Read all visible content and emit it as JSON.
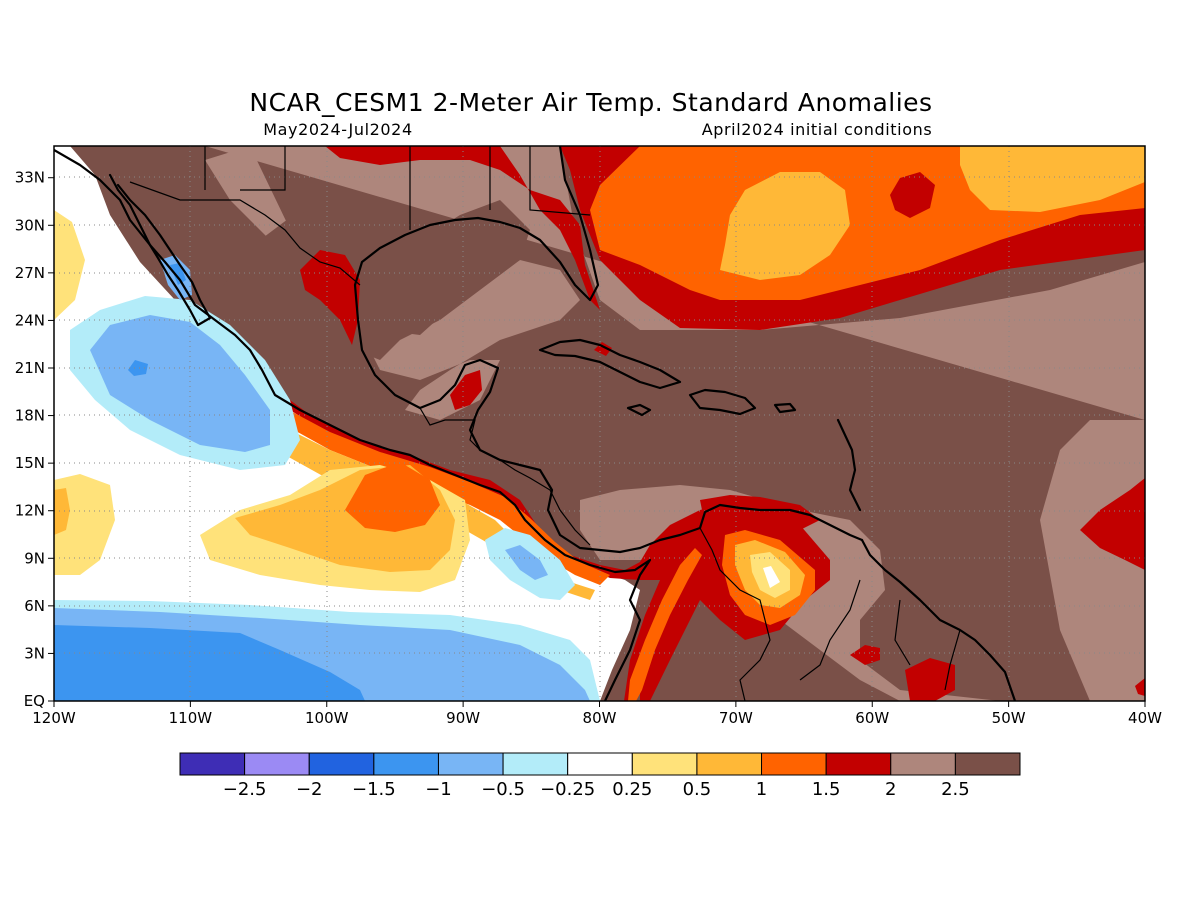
{
  "header": {
    "title": "NCAR_CESM1 2-Meter Air Temp. Standard Anomalies",
    "period": "May2024-Jul2024",
    "init": "April2024 initial conditions"
  },
  "map": {
    "lon_range": [
      -120,
      -40
    ],
    "lat_range": [
      0,
      35
    ],
    "lon_ticks": [
      {
        "value": -120,
        "label": "120W"
      },
      {
        "value": -110,
        "label": "110W"
      },
      {
        "value": -100,
        "label": "100W"
      },
      {
        "value": -90,
        "label": "90W"
      },
      {
        "value": -80,
        "label": "80W"
      },
      {
        "value": -70,
        "label": "70W"
      },
      {
        "value": -60,
        "label": "60W"
      },
      {
        "value": -50,
        "label": "50W"
      },
      {
        "value": -40,
        "label": "40W"
      }
    ],
    "lat_ticks": [
      {
        "value": 0,
        "label": "EQ"
      },
      {
        "value": 3,
        "label": "3N"
      },
      {
        "value": 6,
        "label": "6N"
      },
      {
        "value": 9,
        "label": "9N"
      },
      {
        "value": 12,
        "label": "12N"
      },
      {
        "value": 15,
        "label": "15N"
      },
      {
        "value": 18,
        "label": "18N"
      },
      {
        "value": 21,
        "label": "21N"
      },
      {
        "value": 24,
        "label": "24N"
      },
      {
        "value": 27,
        "label": "27N"
      },
      {
        "value": 30,
        "label": "30N"
      },
      {
        "value": 33,
        "label": "33N"
      }
    ],
    "grid": true
  },
  "colorbar": {
    "colors": [
      "#3e2db5",
      "#9b8af4",
      "#2163e0",
      "#3c95f0",
      "#78b5f5",
      "#b3ecf9",
      "#ffffff",
      "#ffe27a",
      "#ffb837",
      "#ff6300",
      "#c20000",
      "#ae867c",
      "#7a5048"
    ],
    "labels": [
      "-2.5",
      "-2",
      "-1.5",
      "-1",
      "-0.5",
      "-0.25",
      "0.25",
      "0.5",
      "1",
      "1.5",
      "2",
      "2.5"
    ]
  }
}
